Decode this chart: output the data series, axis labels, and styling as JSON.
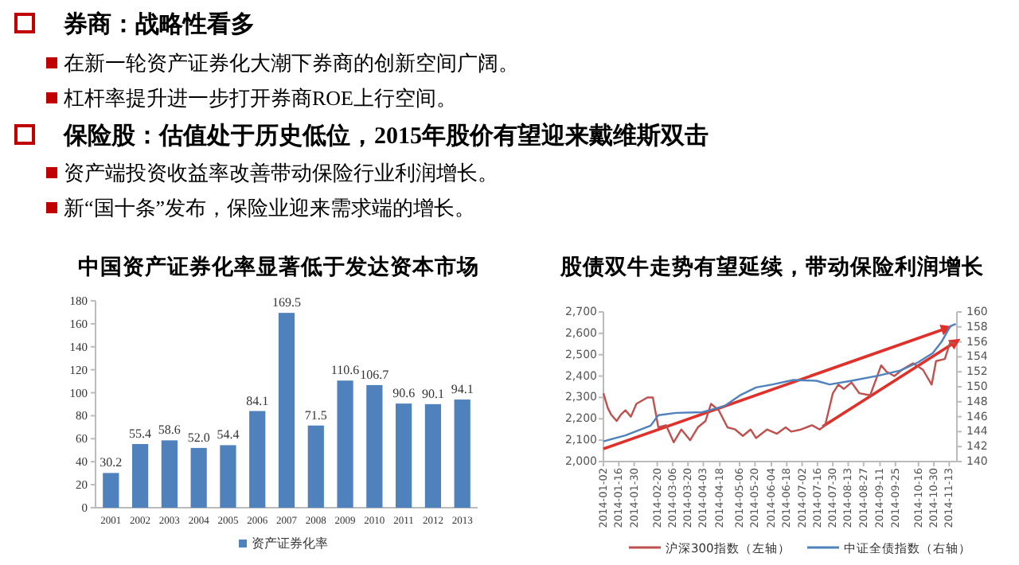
{
  "chart_data": [
    {
      "type": "other",
      "annotations": [
        "券商：战略性看多",
        "在新一轮资产证券化大潮下券商的创新空间广阔。",
        "杠杆率提升进一步打开券商ROE上行空间。",
        "保险股：估值处于历史低位，2015年股价有望迎来戴维斯双击",
        "资产端投资收益率改善带动保险行业利润增长。",
        "新“国十条”发布，保险业迎来需求端的增长。"
      ]
    },
    {
      "type": "bar",
      "title": "中国资产证券化率显著低于发达资本市场",
      "categories": [
        "2001",
        "2002",
        "2003",
        "2004",
        "2005",
        "2006",
        "2007",
        "2008",
        "2009",
        "2010",
        "2011",
        "2012",
        "2013"
      ],
      "series": [
        {
          "name": "资产证券化率",
          "color": "#4f81bd",
          "values": [
            30.2,
            55.4,
            58.6,
            52.0,
            54.4,
            84.1,
            169.5,
            71.5,
            110.6,
            106.7,
            90.6,
            90.1,
            94.1
          ],
          "value_labels": [
            "30.2",
            "55.4",
            "58.6",
            "52.0",
            "54.4",
            "84.1",
            "169.5",
            "71.5",
            "110.6",
            "106.7",
            "90.6",
            "90.1",
            "94.1"
          ]
        }
      ],
      "ylim": [
        0,
        180
      ],
      "yticks": [
        0,
        20,
        40,
        60,
        80,
        100,
        120,
        140,
        160,
        180
      ],
      "grid": false,
      "legend": "bottom"
    },
    {
      "type": "line",
      "title": "股债双牛走势有望延续，带动保险利润增长",
      "xlim": [
        "2014-01-02",
        "2014-11-20"
      ],
      "xticks": [
        "2014-01-02",
        "2014-01-16",
        "2014-01-30",
        "2014-02-20",
        "2014-03-06",
        "2014-03-20",
        "2014-04-03",
        "2014-04-18",
        "2014-05-06",
        "2014-05-20",
        "2014-06-04",
        "2014-06-18",
        "2014-07-02",
        "2014-07-16",
        "2014-07-30",
        "2014-08-13",
        "2014-08-27",
        "2014-09-11",
        "2014-09-25",
        "2014-10-16",
        "2014-10-30",
        "2014-11-13"
      ],
      "ylim": [
        2000,
        2700
      ],
      "yticks": [
        {
          "value": 2000,
          "label": "2,000"
        },
        {
          "value": 2100,
          "label": "2,100"
        },
        {
          "value": 2200,
          "label": "2,200"
        },
        {
          "value": 2300,
          "label": "2,300"
        },
        {
          "value": 2400,
          "label": "2,400"
        },
        {
          "value": 2500,
          "label": "2,500"
        },
        {
          "value": 2600,
          "label": "2,600"
        },
        {
          "value": 2700,
          "label": "2,700"
        }
      ],
      "y2lim": [
        140,
        160
      ],
      "y2ticks": [
        140,
        142,
        144,
        146,
        148,
        150,
        152,
        154,
        156,
        158,
        160
      ],
      "grid": false,
      "legend": "bottom",
      "marker": "none",
      "line_style": "solid",
      "series": [
        {
          "name": "沪深300指数（左轴）",
          "color": "#c0504d",
          "x": [
            "2014-01-02",
            "2014-01-06",
            "2014-01-09",
            "2014-01-14",
            "2014-01-18",
            "2014-01-22",
            "2014-01-27",
            "2014-02-01",
            "2014-02-11",
            "2014-02-16",
            "2014-02-21",
            "2014-02-28",
            "2014-03-07",
            "2014-03-14",
            "2014-03-22",
            "2014-03-29",
            "2014-04-05",
            "2014-04-10",
            "2014-04-17",
            "2014-04-25",
            "2014-05-02",
            "2014-05-09",
            "2014-05-16",
            "2014-05-21",
            "2014-05-31",
            "2014-06-09",
            "2014-06-17",
            "2014-06-22",
            "2014-07-01",
            "2014-07-11",
            "2014-07-18",
            "2014-07-23",
            "2014-07-30",
            "2014-08-04",
            "2014-08-09",
            "2014-08-16",
            "2014-08-23",
            "2014-09-02",
            "2014-09-12",
            "2014-09-17",
            "2014-09-24",
            "2014-10-01",
            "2014-10-11",
            "2014-10-20",
            "2014-10-28",
            "2014-11-01",
            "2014-11-09",
            "2014-11-14",
            "2014-11-19"
          ],
          "values": [
            2320,
            2250,
            2220,
            2190,
            2220,
            2240,
            2210,
            2270,
            2300,
            2300,
            2160,
            2170,
            2090,
            2150,
            2100,
            2160,
            2190,
            2270,
            2240,
            2160,
            2150,
            2120,
            2150,
            2110,
            2150,
            2130,
            2160,
            2140,
            2150,
            2170,
            2150,
            2170,
            2320,
            2360,
            2340,
            2370,
            2320,
            2310,
            2450,
            2420,
            2400,
            2430,
            2460,
            2430,
            2360,
            2470,
            2480,
            2560,
            2550
          ]
        },
        {
          "name": "中证全债指数（右轴）",
          "color": "#4f81bd",
          "axis": "y2",
          "x": [
            "2014-01-02",
            "2014-01-22",
            "2014-02-14",
            "2014-02-21",
            "2014-03-09",
            "2014-04-02",
            "2014-04-22",
            "2014-05-07",
            "2014-05-21",
            "2014-06-05",
            "2014-06-24",
            "2014-07-15",
            "2014-07-27",
            "2014-08-16",
            "2014-09-10",
            "2014-09-30",
            "2014-10-16",
            "2014-10-29",
            "2014-11-06",
            "2014-11-14",
            "2014-11-19"
          ],
          "values": [
            142.7,
            143.5,
            144.8,
            146.2,
            146.5,
            146.6,
            147.4,
            148.9,
            149.9,
            150.3,
            150.9,
            150.8,
            150.3,
            150.8,
            151.5,
            152.2,
            153.3,
            154.5,
            156.0,
            158.1,
            158.4
          ]
        }
      ]
    }
  ]
}
